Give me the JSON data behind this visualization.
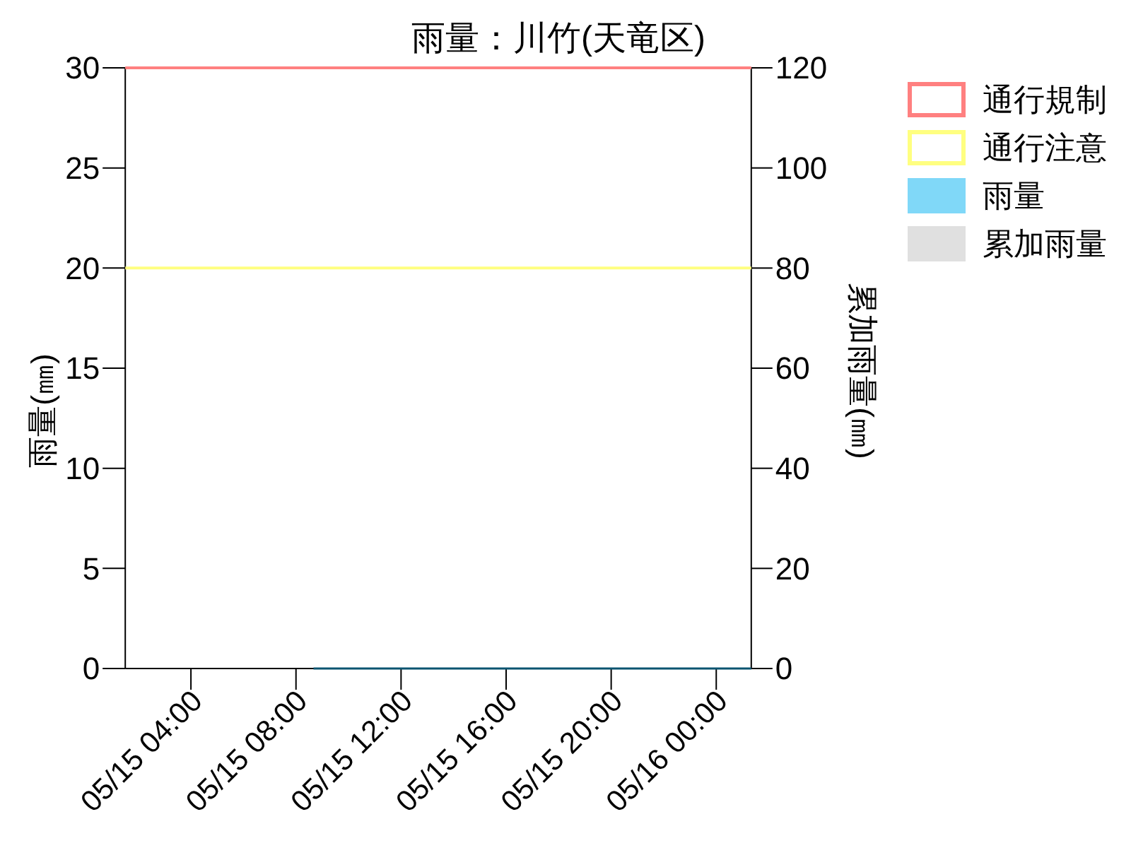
{
  "chart_data": {
    "type": "bar",
    "title": "雨量：川竹(天竜区)",
    "ylabel": "雨量(㎜)",
    "y2label": "累加雨量(㎜)",
    "x": [
      "--05-15T08:40",
      "--05-16T01:20"
    ],
    "xlim": [
      "--05-15T01:30",
      "--05-16T01:20"
    ],
    "xticks": [
      {
        "value": "--05-15T04:00",
        "label": "05/15 04:00"
      },
      {
        "value": "--05-15T08:00",
        "label": "05/15 08:00"
      },
      {
        "value": "--05-15T12:00",
        "label": "05/15 12:00"
      },
      {
        "value": "--05-15T16:00",
        "label": "05/15 16:00"
      },
      {
        "value": "--05-15T20:00",
        "label": "05/15 20:00"
      },
      {
        "value": "--05-16T00:00",
        "label": "05/16 00:00"
      }
    ],
    "ylim": [
      0,
      30
    ],
    "yticks": [
      0,
      5,
      10,
      15,
      20,
      25,
      30
    ],
    "y2lim": [
      0,
      120
    ],
    "y2ticks": [
      0,
      20,
      40,
      60,
      80,
      100,
      120
    ],
    "series": [
      {
        "name": "雨量",
        "color": "#80d8f8",
        "values": [
          null,
          null
        ]
      },
      {
        "name": "累加雨量",
        "color": "#e0e0e0",
        "values": [
          null,
          null
        ]
      },
      {
        "type": "line",
        "color": "#0b5470",
        "values": [
          0,
          0
        ]
      }
    ],
    "ref_lines": [
      {
        "axis": "y",
        "value": 30,
        "label": "通行規制",
        "color": "#ff8080"
      },
      {
        "axis": "y",
        "value": 20,
        "label": "通行注意",
        "color": "#ffff80"
      }
    ],
    "legend": "right"
  }
}
